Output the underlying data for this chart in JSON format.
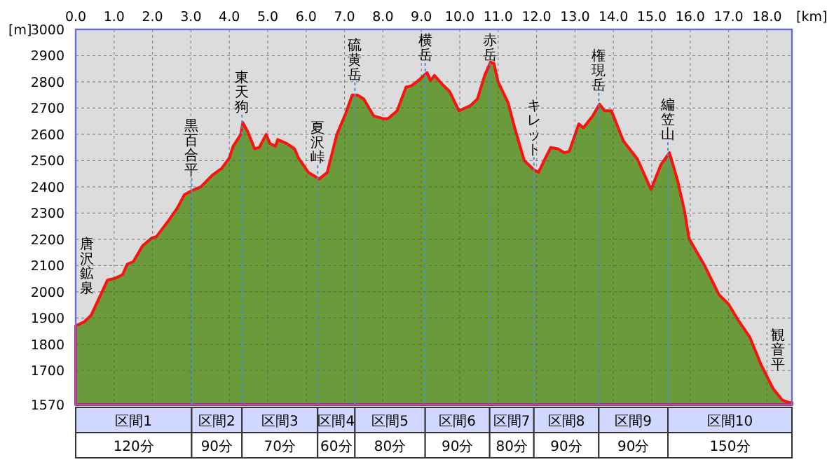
{
  "chart_data": {
    "type": "area",
    "ylabel": "[m]",
    "xlabel": "[km]",
    "xlim": [
      0,
      18.65
    ],
    "ylim": [
      1570,
      3000
    ],
    "xticks": [
      {
        "value": 0,
        "label": "0.0"
      },
      {
        "value": 1,
        "label": "1.0"
      },
      {
        "value": 2,
        "label": "2.0"
      },
      {
        "value": 3,
        "label": "3.0"
      },
      {
        "value": 4,
        "label": "4.0"
      },
      {
        "value": 5,
        "label": "5.0"
      },
      {
        "value": 6,
        "label": "6.0"
      },
      {
        "value": 7,
        "label": "7.0"
      },
      {
        "value": 8,
        "label": "8.0"
      },
      {
        "value": 9,
        "label": "9.0"
      },
      {
        "value": 10,
        "label": "10.0"
      },
      {
        "value": 11,
        "label": "11.0"
      },
      {
        "value": 12,
        "label": "12.0"
      },
      {
        "value": 13,
        "label": "13.0"
      },
      {
        "value": 14,
        "label": "14.0"
      },
      {
        "value": 15,
        "label": "15.0"
      },
      {
        "value": 16,
        "label": "16.0"
      },
      {
        "value": 17,
        "label": "17.0"
      },
      {
        "value": 18,
        "label": "18.0"
      }
    ],
    "yticks": [
      1570,
      1700,
      1800,
      1900,
      2000,
      2100,
      2200,
      2300,
      2400,
      2500,
      2600,
      2700,
      2800,
      2900,
      3000
    ],
    "grid": true,
    "series": [
      {
        "color": "#6b9a3a",
        "x": [
          0,
          0.22,
          0.4,
          0.83,
          1.0,
          1.22,
          1.34,
          1.5,
          1.74,
          1.98,
          2.1,
          2.41,
          2.65,
          2.83,
          3.0,
          3.26,
          3.56,
          3.8,
          4.0,
          4.1,
          4.3,
          4.35,
          4.48,
          4.66,
          4.78,
          4.96,
          5.06,
          5.2,
          5.26,
          5.5,
          5.7,
          5.8,
          6.06,
          6.34,
          6.55,
          6.8,
          7.03,
          7.2,
          7.33,
          7.5,
          7.76,
          8.0,
          8.13,
          8.37,
          8.6,
          8.74,
          8.88,
          9.15,
          9.24,
          9.34,
          9.55,
          9.73,
          9.98,
          10.28,
          10.46,
          10.65,
          10.8,
          10.89,
          11.0,
          11.26,
          11.44,
          11.68,
          11.93,
          12.05,
          12.23,
          12.37,
          12.55,
          12.73,
          12.85,
          13.1,
          13.22,
          13.46,
          13.64,
          13.77,
          13.95,
          14.26,
          14.63,
          14.98,
          15.24,
          15.46,
          15.67,
          15.85,
          15.97,
          16.39,
          16.75,
          17.0,
          17.25,
          17.55,
          17.85,
          18.16,
          18.4,
          18.57,
          18.65
        ],
        "values": [
          1870,
          1885,
          1910,
          2045,
          2050,
          2065,
          2105,
          2115,
          2175,
          2205,
          2210,
          2270,
          2320,
          2370,
          2384,
          2400,
          2445,
          2470,
          2510,
          2555,
          2600,
          2645,
          2610,
          2545,
          2550,
          2600,
          2565,
          2555,
          2580,
          2565,
          2545,
          2510,
          2455,
          2430,
          2455,
          2600,
          2680,
          2750,
          2750,
          2735,
          2670,
          2660,
          2660,
          2690,
          2780,
          2785,
          2800,
          2835,
          2805,
          2825,
          2790,
          2765,
          2690,
          2710,
          2735,
          2825,
          2875,
          2870,
          2800,
          2720,
          2620,
          2500,
          2465,
          2455,
          2510,
          2550,
          2545,
          2530,
          2535,
          2640,
          2625,
          2670,
          2715,
          2690,
          2690,
          2575,
          2505,
          2390,
          2485,
          2530,
          2425,
          2310,
          2203,
          2096,
          1989,
          1953,
          1892,
          1828,
          1721,
          1631,
          1587,
          1578,
          1578
        ]
      }
    ],
    "ref_lines": [
      {
        "axis": "x",
        "value": 3.02,
        "label": "黒百合平",
        "color": "#4a8fd8",
        "line_style": "dotted"
      },
      {
        "axis": "x",
        "value": 4.33,
        "label": "東天狗",
        "color": "#4a8fd8",
        "line_style": "dotted"
      },
      {
        "axis": "x",
        "value": 6.3,
        "label": "夏沢峠",
        "color": "#4a8fd8",
        "line_style": "dotted"
      },
      {
        "axis": "x",
        "value": 7.27,
        "label": "硫黄岳",
        "color": "#4a8fd8",
        "line_style": "dotted"
      },
      {
        "axis": "x",
        "value": 9.1,
        "label": "横岳",
        "color": "#4a8fd8",
        "line_style": "dotted"
      },
      {
        "axis": "x",
        "value": 10.78,
        "label": "赤岳",
        "color": "#4a8fd8",
        "line_style": "dotted"
      },
      {
        "axis": "x",
        "value": 11.93,
        "label": "キレット",
        "color": "#4a8fd8",
        "line_style": "dotted"
      },
      {
        "axis": "x",
        "value": 13.62,
        "label": "権現岳",
        "color": "#4a8fd8",
        "line_style": "dotted"
      },
      {
        "axis": "x",
        "value": 15.42,
        "label": "編笠山",
        "color": "#4a8fd8",
        "line_style": "dotted"
      }
    ],
    "annotations": [
      {
        "text": "唐沢鉱泉",
        "x": 0,
        "y": 1870
      },
      {
        "text": "観音平",
        "x": 18.65,
        "y": 1578
      },
      "区間1",
      "120分",
      "区間2",
      "90分",
      "区間3",
      "70分",
      "区間4",
      "60分",
      "区間5",
      "80分",
      "区間6",
      "90分",
      "区間7",
      "80分",
      "区間8",
      "90分",
      "区間9",
      "90分",
      "区間10",
      "150分"
    ]
  }
}
